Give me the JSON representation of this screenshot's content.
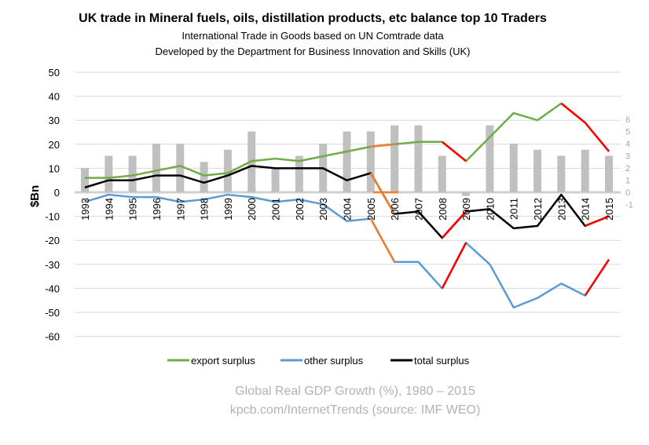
{
  "chart_data": {
    "type": "line",
    "title": "UK trade in Mineral fuels, oils, distillation products, etc balance top 10 Traders",
    "subtitle": [
      "International Trade in Goods based on UN Comtrade data",
      "Developed by the Department for Business Innovation and Skills (UK)"
    ],
    "ylabel": "$Bn",
    "ylim": [
      -60,
      50
    ],
    "yticks": [
      50,
      40,
      30,
      20,
      10,
      0,
      -10,
      -20,
      -30,
      -40,
      -50,
      -60
    ],
    "y2lim": [
      -1,
      6
    ],
    "y2ticks": [
      6,
      5,
      4,
      3,
      2,
      1,
      0,
      -1
    ],
    "grid": true,
    "legend_placement": "bottom",
    "categories": [
      "1993",
      "1994",
      "1995",
      "1996",
      "1997",
      "1998",
      "1999",
      "2000",
      "2001",
      "2002",
      "2003",
      "2004",
      "2005",
      "2006",
      "2007",
      "2008",
      "2009",
      "2010",
      "2011",
      "2012",
      "2013",
      "2014",
      "2015"
    ],
    "series": [
      {
        "name": "export surplus",
        "color": "#70ad47",
        "values": [
          6,
          6,
          7,
          9,
          11,
          7,
          8,
          13,
          14,
          13,
          15,
          17,
          19,
          20,
          21,
          21,
          13,
          23,
          33,
          30,
          37,
          29,
          17
        ]
      },
      {
        "name": "other surplus",
        "color": "#5b9bd5",
        "values": [
          -4,
          -1,
          -2,
          -2,
          -4,
          -3,
          -1,
          -2,
          -4,
          -3,
          -5,
          -12,
          -11,
          -29,
          -29,
          -40,
          -21,
          -30,
          -48,
          -44,
          -38,
          -43,
          -28
        ]
      },
      {
        "name": "total surplus",
        "color": "#000000",
        "values": [
          2,
          5,
          5,
          7,
          7,
          4,
          7,
          11,
          10,
          10,
          10,
          5,
          8,
          -9,
          -8,
          -19,
          -8,
          -7,
          -15,
          -14,
          -1,
          -14,
          -10
        ]
      }
    ],
    "bars": {
      "axis": "right",
      "color": "#c0c0c0",
      "values": [
        2,
        3,
        3,
        4,
        4,
        2.5,
        3.5,
        5,
        2,
        3,
        4,
        5,
        5,
        5.5,
        5.5,
        3,
        -0.3,
        5.5,
        4,
        3.5,
        3,
        3.5,
        3
      ]
    },
    "highlights": [
      {
        "color": "#ed7d31",
        "segments": [
          [
            "2005",
            "2006"
          ]
        ]
      },
      {
        "color": "#ff0000",
        "segments": [
          [
            "2008",
            "2009"
          ],
          [
            "2013",
            "2014"
          ],
          [
            "2014",
            "2015"
          ]
        ]
      }
    ],
    "footer": [
      "Global Real GDP Growth (%), 1980 – 2015",
      "kpcb.com/InternetTrends (source: IMF WEO)"
    ]
  }
}
